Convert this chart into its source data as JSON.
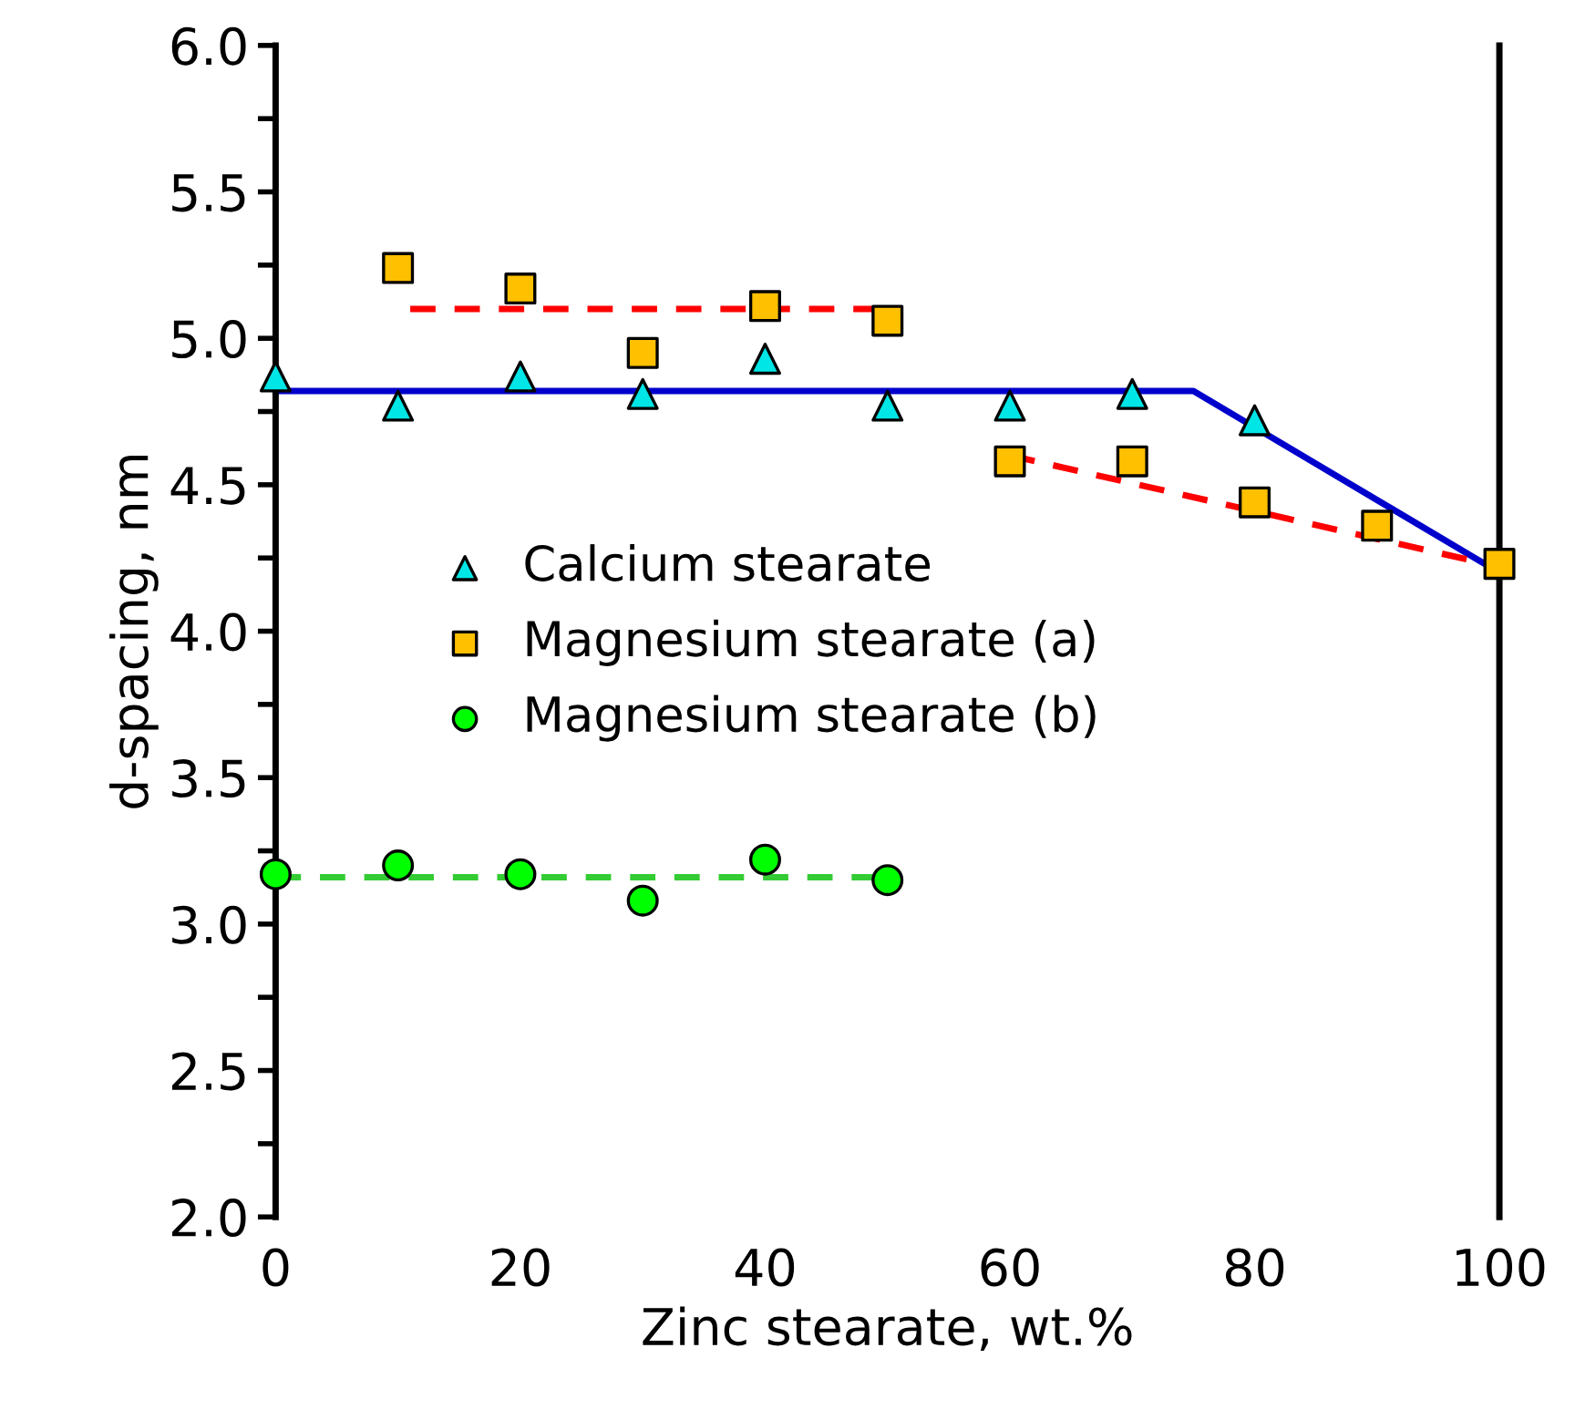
{
  "chart_data": {
    "type": "scatter",
    "xlabel": "Zinc stearate, wt.%",
    "ylabel": "d-spacing, nm",
    "xlim": [
      0,
      100
    ],
    "xticks": [
      0,
      20,
      40,
      60,
      80,
      100
    ],
    "ylim": [
      2.0,
      6.0
    ],
    "yticks": [
      {
        "value": 2.0,
        "label": "2.0"
      },
      {
        "value": 2.25,
        "label": null
      },
      {
        "value": 2.5,
        "label": "2.5"
      },
      {
        "value": 2.75,
        "label": null
      },
      {
        "value": 3.0,
        "label": "3.0"
      },
      {
        "value": 3.25,
        "label": null
      },
      {
        "value": 3.5,
        "label": "3.5"
      },
      {
        "value": 3.75,
        "label": null
      },
      {
        "value": 4.0,
        "label": "4.0"
      },
      {
        "value": 4.25,
        "label": null
      },
      {
        "value": 4.5,
        "label": "4.5"
      },
      {
        "value": 4.75,
        "label": null
      },
      {
        "value": 5.0,
        "label": "5.0"
      },
      {
        "value": 5.25,
        "label": null
      },
      {
        "value": 5.5,
        "label": "5.5"
      },
      {
        "value": 5.75,
        "label": null
      },
      {
        "value": 6.0,
        "label": "6.0"
      }
    ],
    "grid": false,
    "legend": "center left",
    "series": [
      {
        "type": "line",
        "color": "#0000cc",
        "marker": "none",
        "line_style": "solid",
        "x": [
          0,
          75,
          100
        ],
        "values": [
          4.82,
          4.82,
          4.2
        ]
      },
      {
        "type": "line",
        "color": "#ff0000",
        "marker": "none",
        "line_style": "dashed",
        "x": [
          11,
          50
        ],
        "values": [
          5.1,
          5.1
        ]
      },
      {
        "type": "line",
        "color": "#ff0000",
        "marker": "none",
        "line_style": "dashed",
        "x": [
          60,
          100
        ],
        "values": [
          4.6,
          4.22
        ]
      },
      {
        "type": "line",
        "color": "#33cc33",
        "marker": "none",
        "line_style": "dashed",
        "x": [
          0,
          50
        ],
        "values": [
          3.16,
          3.16
        ]
      },
      {
        "name": "Calcium stearate",
        "color": "#00e5e5",
        "marker": "triangle",
        "x": [
          0,
          10,
          20,
          30,
          40,
          50,
          60,
          70,
          80
        ],
        "values": [
          4.87,
          4.77,
          4.87,
          4.81,
          4.93,
          4.77,
          4.77,
          4.81,
          4.72
        ]
      },
      {
        "name": "Magnesium stearate (a)",
        "color": "#ffc000",
        "marker": "square",
        "x": [
          10,
          20,
          30,
          40,
          50,
          60,
          70,
          80,
          90,
          100
        ],
        "values": [
          5.24,
          5.17,
          4.95,
          5.11,
          5.06,
          4.58,
          4.58,
          4.44,
          4.36,
          4.23
        ]
      },
      {
        "name": "Magnesium stearate (b)",
        "color": "#00ff00",
        "marker": "circle",
        "x": [
          0,
          10,
          20,
          30,
          40,
          50
        ],
        "values": [
          3.17,
          3.2,
          3.17,
          3.08,
          3.22,
          3.15
        ]
      }
    ]
  }
}
